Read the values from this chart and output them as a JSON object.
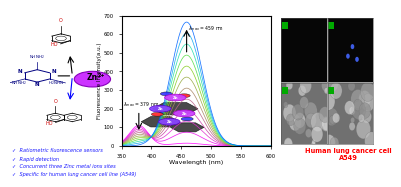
{
  "bg_color": "#ffffff",
  "bullet_text_color": "#1a1aff",
  "bullets": [
    "Ratiometric fluorescence sensors",
    "Rapid detection",
    "Concurrent three Zinc metal ions sites",
    "Specific for human lung cancer cell line (A549)"
  ],
  "cancer_label_color": "#ff0000",
  "cancer_label": "Human lung cancer cell\nA549",
  "ylabel": "Fluorescence Intensity(a.u.)",
  "xlabel": "Wavelength (nm)",
  "xmin": 350,
  "xmax": 600,
  "ymin": 0,
  "ymax": 700,
  "yticks": [
    0,
    100,
    200,
    300,
    400,
    500,
    600,
    700
  ],
  "xticks": [
    350,
    400,
    450,
    500,
    550,
    600
  ],
  "plot_colors": [
    "#ff00ff",
    "#ee11ee",
    "#dd33cc",
    "#cc44aa",
    "#bb6688",
    "#aa8866",
    "#99aa44",
    "#88cc22",
    "#55dd44",
    "#22ddaa",
    "#11aaee",
    "#0066ff"
  ],
  "zn_color": "#cc33ff",
  "zn_edge": "#8800bb",
  "nhnh2_color": "#000080",
  "triazine_n_color": "#000080",
  "oh_color": "#cc0000",
  "cho_color": "#cc0000",
  "arrow_upper_color": "#000000",
  "arrow_lower_color": "#0000ff",
  "cell_img_bg_dark": "#080808",
  "cell_img_bg_gray": "#888888",
  "cell_green": "#00aa00",
  "cell_blue": "#0000cc"
}
